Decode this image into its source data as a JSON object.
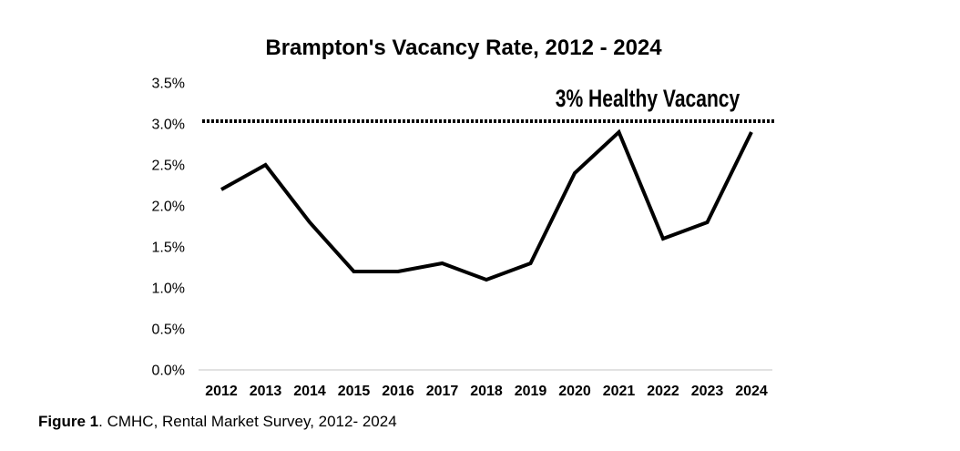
{
  "chart_data": {
    "type": "line",
    "title": "Brampton's Vacancy Rate, 2012 - 2024",
    "xlabel": "",
    "ylabel": "",
    "categories": [
      "2012",
      "2013",
      "2014",
      "2015",
      "2016",
      "2017",
      "2018",
      "2019",
      "2020",
      "2021",
      "2022",
      "2023",
      "2024"
    ],
    "series": [
      {
        "values": [
          2.2,
          2.5,
          1.8,
          1.2,
          1.2,
          1.3,
          1.1,
          1.3,
          2.4,
          2.9,
          1.6,
          1.8,
          2.9
        ]
      }
    ],
    "y_ticks": [
      "0.0%",
      "0.5%",
      "1.0%",
      "1.5%",
      "2.0%",
      "2.5%",
      "3.0%",
      "3.5%"
    ],
    "ylim": [
      0,
      3.5
    ],
    "grid": false,
    "legend": "none",
    "reference_line": {
      "value": 3.0,
      "label": "3% Healthy Vacancy",
      "style": "dotted"
    },
    "colors": {
      "line": "#000000",
      "axis": "#d9d9d9",
      "text": "#000000"
    }
  },
  "caption": {
    "label": "Figure 1",
    "text": ". CMHC, Rental Market Survey, 2012- 2024"
  }
}
